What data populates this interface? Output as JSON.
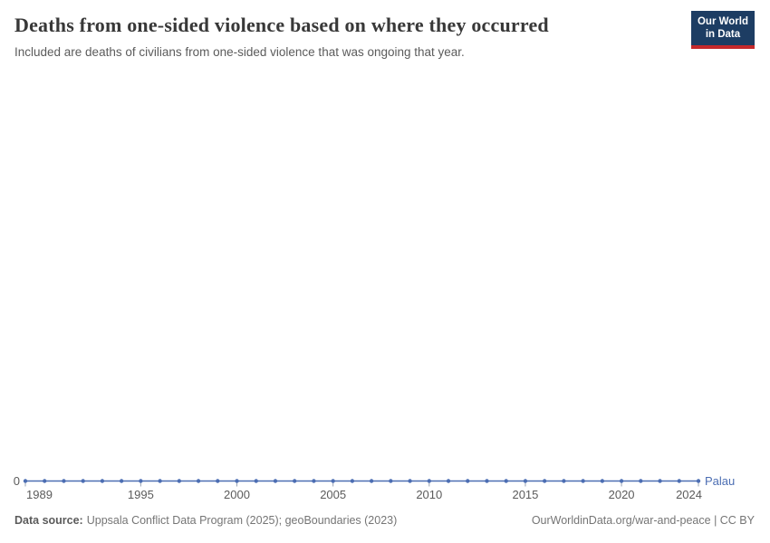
{
  "header": {
    "title": "Deaths from one-sided violence based on where they occurred",
    "subtitle": "Included are deaths of civilians from one-sided violence that was ongoing that year.",
    "logo_line1": "Our World",
    "logo_line2": "in Data"
  },
  "chart_data": {
    "type": "line",
    "title": "Deaths from one-sided violence based on where they occurred",
    "x": [
      1989,
      1990,
      1991,
      1992,
      1993,
      1994,
      1995,
      1996,
      1997,
      1998,
      1999,
      2000,
      2001,
      2002,
      2003,
      2004,
      2005,
      2006,
      2007,
      2008,
      2009,
      2010,
      2011,
      2012,
      2013,
      2014,
      2015,
      2016,
      2017,
      2018,
      2019,
      2020,
      2021,
      2022,
      2023,
      2024
    ],
    "series": [
      {
        "name": "Palau",
        "color": "#4C6EB3",
        "values": [
          0,
          0,
          0,
          0,
          0,
          0,
          0,
          0,
          0,
          0,
          0,
          0,
          0,
          0,
          0,
          0,
          0,
          0,
          0,
          0,
          0,
          0,
          0,
          0,
          0,
          0,
          0,
          0,
          0,
          0,
          0,
          0,
          0,
          0,
          0,
          0
        ]
      }
    ],
    "x_ticks": [
      1989,
      1995,
      2000,
      2005,
      2010,
      2015,
      2020,
      2024
    ],
    "y_axis": {
      "min": 0,
      "max": 0,
      "ticks": [
        "0"
      ]
    },
    "grid": false,
    "legend_position": "right-of-line",
    "marker": "dot"
  },
  "footer": {
    "source_label": "Data source:",
    "source_text": "Uppsala Conflict Data Program (2025); geoBoundaries (2023)",
    "link_text": "OurWorldinData.org/war-and-peace | CC BY"
  },
  "colors": {
    "line": "#4C6EB3",
    "logo_navy": "#1d3d63",
    "logo_red": "#c5292b",
    "tick_text": "#5b5b5b"
  }
}
